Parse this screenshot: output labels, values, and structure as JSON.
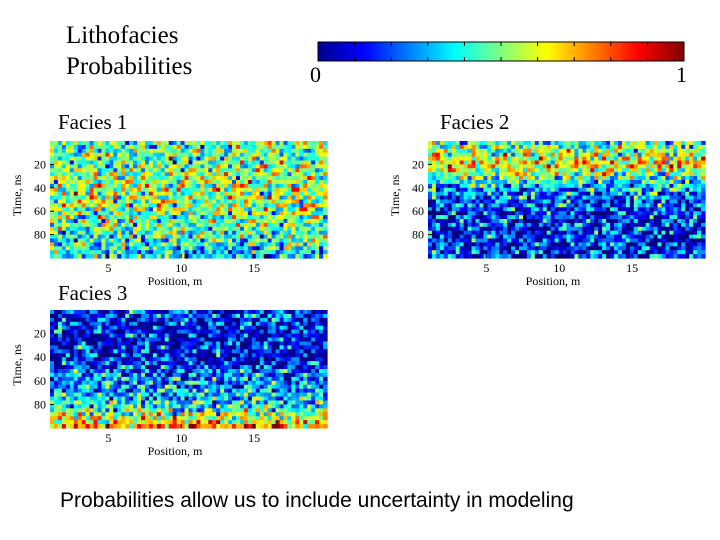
{
  "title": "Lithofacies\nProbabilities",
  "colorbar": {
    "min_label": "0",
    "max_label": "1",
    "colormap": "jet",
    "range": [
      0,
      1
    ]
  },
  "footer": "Probabilities allow us to include uncertainty in modeling",
  "chart_data": [
    {
      "type": "heatmap",
      "title": "Facies 1",
      "xlabel": "Position, m",
      "ylabel": "Time, ns",
      "xlim": [
        1,
        20
      ],
      "ylim": [
        0,
        100
      ],
      "y_inverted": true,
      "xticks": [
        5,
        10,
        15
      ],
      "yticks": [
        20,
        40,
        60,
        80
      ],
      "value_range": [
        0,
        1
      ],
      "profile_by_time": [
        [
          0,
          0.45
        ],
        [
          20,
          0.5
        ],
        [
          40,
          0.55
        ],
        [
          60,
          0.5
        ],
        [
          80,
          0.45
        ],
        [
          100,
          0.35
        ]
      ]
    },
    {
      "type": "heatmap",
      "title": "Facies 2",
      "xlabel": "Position, m",
      "ylabel": "Time, ns",
      "xlim": [
        1,
        20
      ],
      "ylim": [
        0,
        100
      ],
      "y_inverted": true,
      "xticks": [
        5,
        10,
        15
      ],
      "yticks": [
        20,
        40,
        60,
        80
      ],
      "value_range": [
        0,
        1
      ],
      "profile_by_time": [
        [
          0,
          0.4
        ],
        [
          20,
          0.65
        ],
        [
          40,
          0.3
        ],
        [
          60,
          0.15
        ],
        [
          80,
          0.15
        ],
        [
          100,
          0.15
        ]
      ]
    },
    {
      "type": "heatmap",
      "title": "Facies 3",
      "xlabel": "Position, m",
      "ylabel": "Time, ns",
      "xlim": [
        1,
        20
      ],
      "ylim": [
        0,
        100
      ],
      "y_inverted": true,
      "xticks": [
        5,
        10,
        15
      ],
      "yticks": [
        20,
        40,
        60,
        80
      ],
      "value_range": [
        0,
        1
      ],
      "profile_by_time": [
        [
          0,
          0.15
        ],
        [
          20,
          0.12
        ],
        [
          40,
          0.1
        ],
        [
          60,
          0.25
        ],
        [
          80,
          0.35
        ],
        [
          100,
          0.75
        ]
      ]
    }
  ]
}
